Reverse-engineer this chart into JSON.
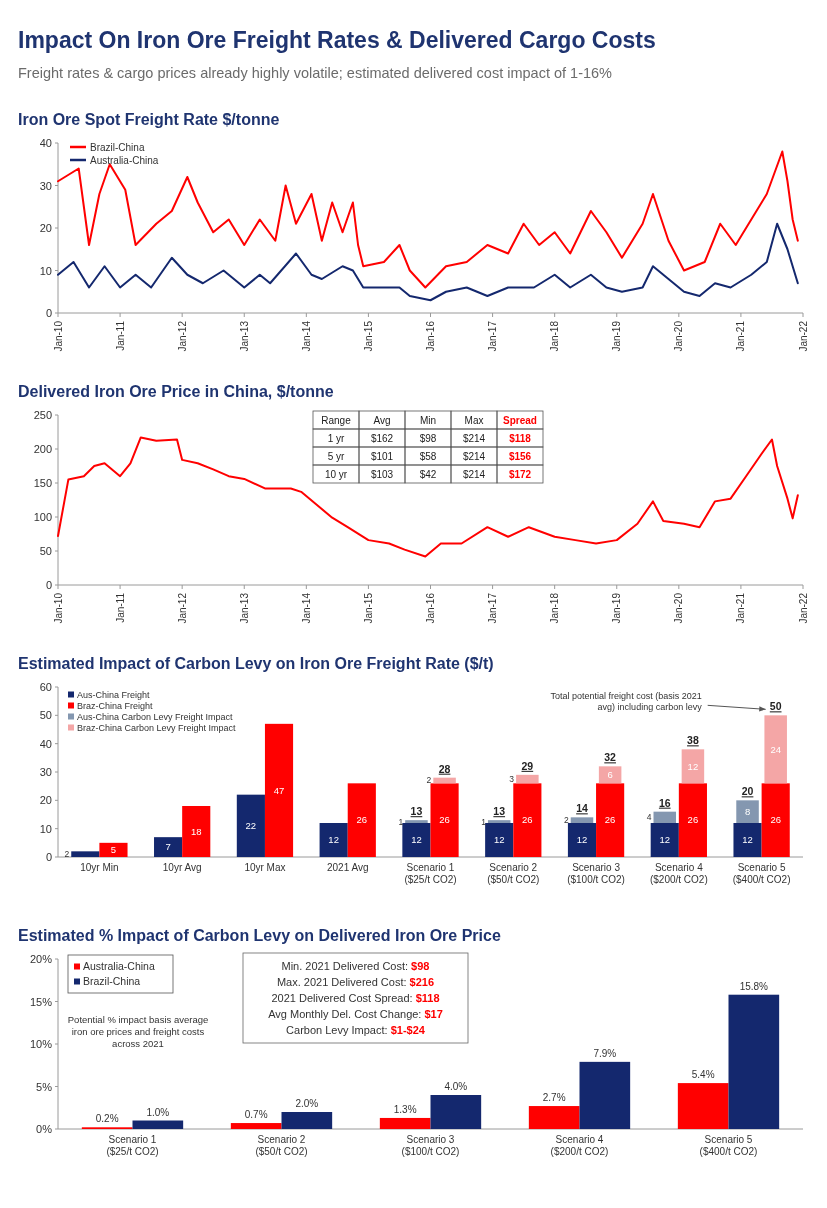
{
  "chart_data": [
    {
      "type": "other",
      "title": "Impact On Iron Ore Freight Rates & Delivered Cargo Costs",
      "subtitle": "Freight rates & cargo prices already highly volatile; estimated delivered cost impact of 1-16%"
    },
    {
      "type": "line",
      "title": "Iron Ore Spot Freight Rate $/tonne",
      "xlim": [
        "2010-01",
        "2022-01"
      ],
      "xticks": [
        {
          "value": "2010-01",
          "label": "Jan-10"
        },
        {
          "value": "2011-01",
          "label": "Jan-11"
        },
        {
          "value": "2012-01",
          "label": "Jan-12"
        },
        {
          "value": "2013-01",
          "label": "Jan-13"
        },
        {
          "value": "2014-01",
          "label": "Jan-14"
        },
        {
          "value": "2015-01",
          "label": "Jan-15"
        },
        {
          "value": "2016-01",
          "label": "Jan-16"
        },
        {
          "value": "2017-01",
          "label": "Jan-17"
        },
        {
          "value": "2018-01",
          "label": "Jan-18"
        },
        {
          "value": "2019-01",
          "label": "Jan-19"
        },
        {
          "value": "2020-01",
          "label": "Jan-20"
        },
        {
          "value": "2021-01",
          "label": "Jan-21"
        },
        {
          "value": "2022-01",
          "label": "Jan-22"
        }
      ],
      "ylim": [
        0,
        40
      ],
      "yticks": [
        0,
        10,
        20,
        30,
        40
      ],
      "legend": "top left",
      "series": [
        {
          "name": "Brazil-China",
          "color": "#ff0000",
          "x": [
            "2010-01",
            "2010-05",
            "2010-07",
            "2010-09",
            "2010-11",
            "2011-02",
            "2011-04",
            "2011-08",
            "2011-11",
            "2012-02",
            "2012-04",
            "2012-07",
            "2012-10",
            "2013-01",
            "2013-04",
            "2013-07",
            "2013-09",
            "2013-11",
            "2014-02",
            "2014-04",
            "2014-06",
            "2014-08",
            "2014-10",
            "2014-11",
            "2014-12",
            "2015-04",
            "2015-07",
            "2015-09",
            "2015-12",
            "2016-04",
            "2016-08",
            "2016-12",
            "2017-04",
            "2017-07",
            "2017-10",
            "2018-01",
            "2018-04",
            "2018-08",
            "2018-11",
            "2019-02",
            "2019-06",
            "2019-08",
            "2019-11",
            "2020-02",
            "2020-06",
            "2020-09",
            "2020-12",
            "2021-03",
            "2021-06",
            "2021-09",
            "2021-10",
            "2021-11",
            "2021-12"
          ],
          "values": [
            31,
            34,
            16,
            28,
            35,
            29,
            16,
            21,
            24,
            32,
            26,
            19,
            22,
            16,
            22,
            17,
            30,
            21,
            28,
            17,
            26,
            19,
            26,
            16,
            11,
            12,
            16,
            10,
            6,
            11,
            12,
            16,
            14,
            21,
            16,
            19,
            14,
            24,
            19,
            13,
            21,
            28,
            17,
            10,
            12,
            21,
            16,
            22,
            28,
            38,
            31,
            22,
            17
          ]
        },
        {
          "name": "Australia-China",
          "color": "#14286e",
          "x": [
            "2010-01",
            "2010-04",
            "2010-07",
            "2010-10",
            "2011-01",
            "2011-04",
            "2011-07",
            "2011-11",
            "2012-02",
            "2012-05",
            "2012-09",
            "2013-01",
            "2013-04",
            "2013-06",
            "2013-11",
            "2014-02",
            "2014-04",
            "2014-08",
            "2014-10",
            "2014-12",
            "2015-04",
            "2015-07",
            "2015-09",
            "2016-01",
            "2016-04",
            "2016-08",
            "2016-12",
            "2017-04",
            "2017-09",
            "2018-01",
            "2018-04",
            "2018-08",
            "2018-11",
            "2019-02",
            "2019-06",
            "2019-08",
            "2019-11",
            "2020-02",
            "2020-05",
            "2020-08",
            "2020-11",
            "2021-03",
            "2021-06",
            "2021-08",
            "2021-10",
            "2021-12"
          ],
          "values": [
            9,
            12,
            6,
            11,
            6,
            9,
            6,
            13,
            9,
            7,
            10,
            6,
            9,
            7,
            14,
            9,
            8,
            11,
            10,
            6,
            6,
            6,
            4,
            3,
            5,
            6,
            4,
            6,
            6,
            9,
            6,
            9,
            6,
            5,
            6,
            11,
            8,
            5,
            4,
            7,
            6,
            9,
            12,
            21,
            15,
            7
          ]
        }
      ]
    },
    {
      "type": "line",
      "title": "Delivered Iron Ore Price in China, $/tonne",
      "xlim": [
        "2010-01",
        "2022-01"
      ],
      "xticks": [
        {
          "value": "2010-01",
          "label": "Jan-10"
        },
        {
          "value": "2011-01",
          "label": "Jan-11"
        },
        {
          "value": "2012-01",
          "label": "Jan-12"
        },
        {
          "value": "2013-01",
          "label": "Jan-13"
        },
        {
          "value": "2014-01",
          "label": "Jan-14"
        },
        {
          "value": "2015-01",
          "label": "Jan-15"
        },
        {
          "value": "2016-01",
          "label": "Jan-16"
        },
        {
          "value": "2017-01",
          "label": "Jan-17"
        },
        {
          "value": "2018-01",
          "label": "Jan-18"
        },
        {
          "value": "2019-01",
          "label": "Jan-19"
        },
        {
          "value": "2020-01",
          "label": "Jan-20"
        },
        {
          "value": "2021-01",
          "label": "Jan-21"
        },
        {
          "value": "2022-01",
          "label": "Jan-22"
        }
      ],
      "ylim": [
        0,
        250
      ],
      "yticks": [
        0,
        50,
        100,
        150,
        200,
        250
      ],
      "series": [
        {
          "color": "#ff0000",
          "x": [
            "2010-01",
            "2010-03",
            "2010-06",
            "2010-08",
            "2010-10",
            "2011-01",
            "2011-03",
            "2011-05",
            "2011-08",
            "2011-12",
            "2012-01",
            "2012-04",
            "2012-07",
            "2012-10",
            "2013-01",
            "2013-05",
            "2013-10",
            "2013-12",
            "2014-03",
            "2014-06",
            "2014-09",
            "2015-01",
            "2015-05",
            "2015-08",
            "2015-12",
            "2016-03",
            "2016-07",
            "2016-12",
            "2017-04",
            "2017-08",
            "2018-01",
            "2018-05",
            "2018-09",
            "2019-01",
            "2019-05",
            "2019-08",
            "2019-10",
            "2020-02",
            "2020-05",
            "2020-08",
            "2020-11",
            "2021-02",
            "2021-05",
            "2021-07",
            "2021-08",
            "2021-10",
            "2021-11",
            "2021-12"
          ],
          "values": [
            72,
            155,
            160,
            175,
            179,
            160,
            179,
            217,
            212,
            214,
            184,
            179,
            170,
            160,
            156,
            142,
            142,
            137,
            118,
            99,
            85,
            66,
            61,
            52,
            42,
            61,
            61,
            85,
            71,
            85,
            71,
            66,
            61,
            66,
            90,
            123,
            94,
            90,
            85,
            123,
            127,
            160,
            193,
            214,
            175,
            127,
            98,
            132
          ]
        }
      ],
      "annotations": [
        "Range",
        "Avg",
        "Min",
        "Max",
        "Spread",
        "1 yr",
        "$162",
        "$98",
        "$214",
        "$118",
        "5 yr",
        "$101",
        "$58",
        "$214",
        "$156",
        "10 yr",
        "$103",
        "$42",
        "$214",
        "$172"
      ]
    },
    {
      "type": "bar",
      "title": "Estimated Impact of Carbon Levy on Iron Ore Freight Rate ($/t)",
      "categories": [
        "10yr Min",
        "10yr Avg",
        "10yr Max",
        "2021 Avg",
        "Scenario 1 ($25/t CO2)",
        "Scenario 2 ($50/t CO2)",
        "Scenario 3 ($100/t CO2)",
        "Scenario 4 ($200/t CO2)",
        "Scenario 5 ($400/t CO2)"
      ],
      "ylim": [
        0,
        60
      ],
      "yticks": [
        0,
        10,
        20,
        30,
        40,
        50,
        60
      ],
      "legend": "top left",
      "data_labels": true,
      "series": [
        {
          "name": "Aus-China Freight",
          "color": "#14286e",
          "values": [
            2,
            7,
            22,
            12,
            12,
            12,
            12,
            12,
            12
          ]
        },
        {
          "name": "Braz-China Freight",
          "color": "#ff0000",
          "values": [
            5,
            18,
            47,
            26,
            26,
            26,
            26,
            26,
            26
          ]
        },
        {
          "name": "Aus-China Carbon Levy Freight Impact",
          "color": "#8497b0",
          "values": [
            null,
            null,
            null,
            null,
            1,
            1,
            2,
            4,
            8
          ],
          "base": [
            null,
            null,
            null,
            null,
            12,
            12,
            12,
            12,
            12
          ]
        },
        {
          "name": "Braz-China Carbon Levy Freight Impact",
          "color": "#f4a6a6",
          "values": [
            null,
            null,
            null,
            null,
            2,
            3,
            6,
            12,
            24
          ],
          "base": [
            null,
            null,
            null,
            null,
            26,
            26,
            26,
            26,
            26
          ]
        }
      ],
      "annotations": [
        {
          "text": "Total potential freight cost (basis 2021 avg) including carbon levy",
          "x": "Scenario 5 ($400/t CO2)",
          "y": 50
        },
        {
          "text": "13",
          "x": "Scenario 1 ($25/t CO2)",
          "y": 13
        },
        {
          "text": "28",
          "x": "Scenario 1 ($25/t CO2)",
          "y": 28
        },
        {
          "text": "13",
          "x": "Scenario 2 ($50/t CO2)",
          "y": 13
        },
        {
          "text": "29",
          "x": "Scenario 2 ($50/t CO2)",
          "y": 29
        },
        {
          "text": "14",
          "x": "Scenario 3 ($100/t CO2)",
          "y": 14
        },
        {
          "text": "32",
          "x": "Scenario 3 ($100/t CO2)",
          "y": 32
        },
        {
          "text": "16",
          "x": "Scenario 4 ($200/t CO2)",
          "y": 16
        },
        {
          "text": "38",
          "x": "Scenario 4 ($200/t CO2)",
          "y": 38
        },
        {
          "text": "20",
          "x": "Scenario 5 ($400/t CO2)",
          "y": 20
        },
        {
          "text": "50",
          "x": "Scenario 5 ($400/t CO2)",
          "y": 50
        }
      ]
    },
    {
      "type": "bar",
      "title": "Estimated % Impact of Carbon Levy on Delivered Iron Ore Price",
      "categories": [
        "Scenario 1 ($25/t CO2)",
        "Scenario 2 ($50/t CO2)",
        "Scenario 3 ($100/t CO2)",
        "Scenario 4 ($200/t CO2)",
        "Scenario 5 ($400/t CO2)"
      ],
      "ylim": [
        0,
        20
      ],
      "yticks": [
        {
          "value": 0,
          "label": "0%"
        },
        {
          "value": 5,
          "label": "5%"
        },
        {
          "value": 10,
          "label": "10%"
        },
        {
          "value": 15,
          "label": "15%"
        },
        {
          "value": 20,
          "label": "20%"
        }
      ],
      "legend": "top left",
      "series": [
        {
          "name": "Australia-China",
          "color": "#ff0000",
          "values": [
            0.2,
            0.7,
            1.3,
            2.7,
            5.4
          ],
          "value_labels": [
            "0.2%",
            "0.7%",
            "1.3%",
            "2.7%",
            "5.4%"
          ]
        },
        {
          "name": "Brazil-China",
          "color": "#14286e",
          "values": [
            1.0,
            2.0,
            4.0,
            7.9,
            15.8
          ],
          "value_labels": [
            "1.0%",
            "2.0%",
            "4.0%",
            "7.9%",
            "15.8%"
          ]
        }
      ],
      "annotations": [
        "Potential % impact basis average iron ore prices and freight costs across 2021",
        "Min. 2021 Delivered Cost: $98",
        "Max. 2021 Delivered Cost: $216",
        "2021 Delivered Cost Spread: $118",
        "Avg Monthly Del. Cost Change: $17",
        "Carbon Levy Impact: $1-$24"
      ]
    }
  ]
}
